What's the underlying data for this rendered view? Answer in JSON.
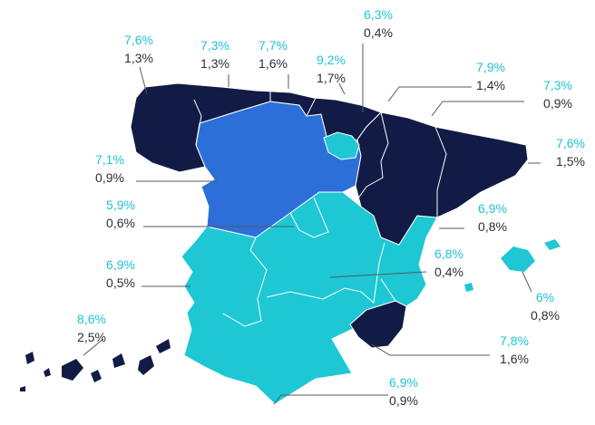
{
  "colors": {
    "dark_navy": "#111b45",
    "blue": "#2d6fd8",
    "turquoise": "#1dc8d4",
    "border": "#ffffff",
    "label_top": "#1fc4d0",
    "label_bottom": "#2a2f3a",
    "leader_line": "#555a66"
  },
  "regions": [
    {
      "value_top": "7,6%",
      "value_bottom": "1,3%"
    },
    {
      "value_top": "7,3%",
      "value_bottom": "1,3%"
    },
    {
      "value_top": "7,7%",
      "value_bottom": "1,6%"
    },
    {
      "value_top": "9,2%",
      "value_bottom": "1,7%"
    },
    {
      "value_top": "6,3%",
      "value_bottom": "0,4%"
    },
    {
      "value_top": "7,9%",
      "value_bottom": "1,4%"
    },
    {
      "value_top": "7,3%",
      "value_bottom": "0,9%"
    },
    {
      "value_top": "7,6%",
      "value_bottom": "1,5%"
    },
    {
      "value_top": "7,1%",
      "value_bottom": "0,9%"
    },
    {
      "value_top": "5,9%",
      "value_bottom": "0,6%"
    },
    {
      "value_top": "6,9%",
      "value_bottom": "0,8%"
    },
    {
      "value_top": "6,8%",
      "value_bottom": "0,4%"
    },
    {
      "value_top": "6,9%",
      "value_bottom": "0,5%"
    },
    {
      "value_top": "6%",
      "value_bottom": "0,8%"
    },
    {
      "value_top": "8,6%",
      "value_bottom": "2,5%"
    },
    {
      "value_top": "7,8%",
      "value_bottom": "1,6%"
    },
    {
      "value_top": "6,9%",
      "value_bottom": "0,9%"
    }
  ]
}
